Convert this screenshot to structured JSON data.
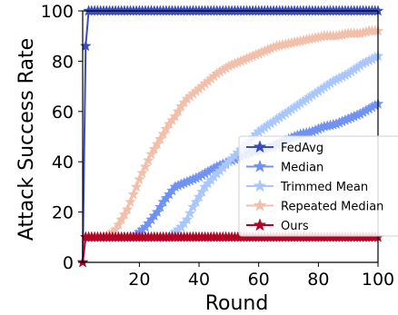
{
  "chart_data": {
    "type": "line",
    "xlabel": "Round",
    "ylabel": "Attack Success Rate",
    "xlim": [
      1,
      100
    ],
    "ylim": [
      0,
      100
    ],
    "xticks": [
      20,
      40,
      60,
      80,
      100
    ],
    "yticks": [
      0,
      20,
      40,
      60,
      80,
      100
    ],
    "grid": false,
    "legend_position": "lower-right",
    "series": [
      {
        "name": "FedAvg",
        "color": "#3b4cc0",
        "x": [
          1,
          2,
          3,
          4,
          100
        ],
        "y": [
          0,
          86,
          100,
          100,
          100
        ]
      },
      {
        "name": "Median",
        "color": "#6f92f3",
        "x": [
          1,
          2,
          5,
          8,
          12,
          15,
          18,
          20,
          22,
          24,
          26,
          28,
          30,
          32,
          34,
          36,
          38,
          40,
          43,
          46,
          50,
          54,
          58,
          62,
          66,
          70,
          74,
          78,
          82,
          86,
          90,
          94,
          97,
          100
        ],
        "y": [
          0,
          10,
          10,
          10,
          10,
          10,
          10,
          12,
          14,
          17,
          20,
          24,
          27,
          30,
          31,
          32,
          33,
          34,
          36,
          38,
          40,
          42,
          44,
          45,
          47,
          49,
          51,
          52,
          54,
          55,
          57,
          59,
          61,
          63
        ]
      },
      {
        "name": "Trimmed Mean",
        "color": "#aac7fd",
        "x": [
          1,
          2,
          5,
          10,
          15,
          20,
          25,
          30,
          32,
          34,
          36,
          38,
          40,
          42,
          45,
          50,
          55,
          60,
          65,
          70,
          75,
          80,
          85,
          90,
          95,
          100
        ],
        "y": [
          0,
          10,
          10,
          10,
          10,
          10,
          10,
          10,
          12,
          14,
          17,
          22,
          26,
          30,
          34,
          40,
          46,
          52,
          56,
          60,
          64,
          68,
          72,
          75,
          79,
          82
        ]
      },
      {
        "name": "Repeated Median",
        "color": "#f2c0aa",
        "x": [
          1,
          2,
          5,
          8,
          10,
          12,
          14,
          16,
          18,
          20,
          22,
          24,
          26,
          28,
          30,
          32,
          34,
          36,
          38,
          40,
          43,
          46,
          50,
          54,
          58,
          62,
          66,
          70,
          74,
          78,
          82,
          86,
          90,
          94,
          97,
          100
        ],
        "y": [
          0,
          10,
          10,
          10,
          11,
          13,
          17,
          21,
          27,
          33,
          38,
          43,
          47,
          51,
          55,
          58,
          62,
          65,
          67,
          69,
          72,
          75,
          78,
          80,
          82,
          84,
          86,
          87,
          88,
          89,
          90,
          90,
          91,
          91,
          92,
          92
        ]
      },
      {
        "name": "Ours",
        "color": "#b40426",
        "x": [
          1,
          2,
          100
        ],
        "y": [
          0,
          10,
          10
        ]
      }
    ]
  }
}
